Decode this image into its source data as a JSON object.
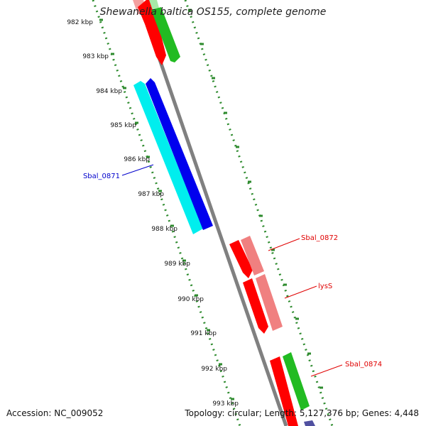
{
  "title": "Shewanella baltica OS155, complete genome",
  "accession": "Accession: NC_009052",
  "summary": "Topology: circular; Length: 5,127,376 bp; Genes: 4,448",
  "ticks": [
    {
      "label": "982 kbp"
    },
    {
      "label": "983 kbp"
    },
    {
      "label": "984 kbp"
    },
    {
      "label": "985 kbp"
    },
    {
      "label": "986 kbp"
    },
    {
      "label": "987 kbp"
    },
    {
      "label": "988 kbp"
    },
    {
      "label": "989 kbp"
    },
    {
      "label": "990 kbp"
    },
    {
      "label": "991 kbp"
    },
    {
      "label": "992 kbp"
    },
    {
      "label": "993 kbp"
    }
  ],
  "gene_labels": [
    {
      "text": "Sbal_0871",
      "color": "#0000cc"
    },
    {
      "text": "Sbal_0872",
      "color": "#e00000"
    },
    {
      "text": "lysS",
      "color": "#e00000"
    },
    {
      "text": "Sbal_0874",
      "color": "#e00000"
    }
  ],
  "colors": {
    "backbone": "#808080",
    "tick_dots": "#2e8b2e",
    "red": "#ff0000",
    "light_red": "#f08080",
    "green": "#22bb22",
    "cyan": "#00eeee",
    "blue": "#0000ee"
  }
}
